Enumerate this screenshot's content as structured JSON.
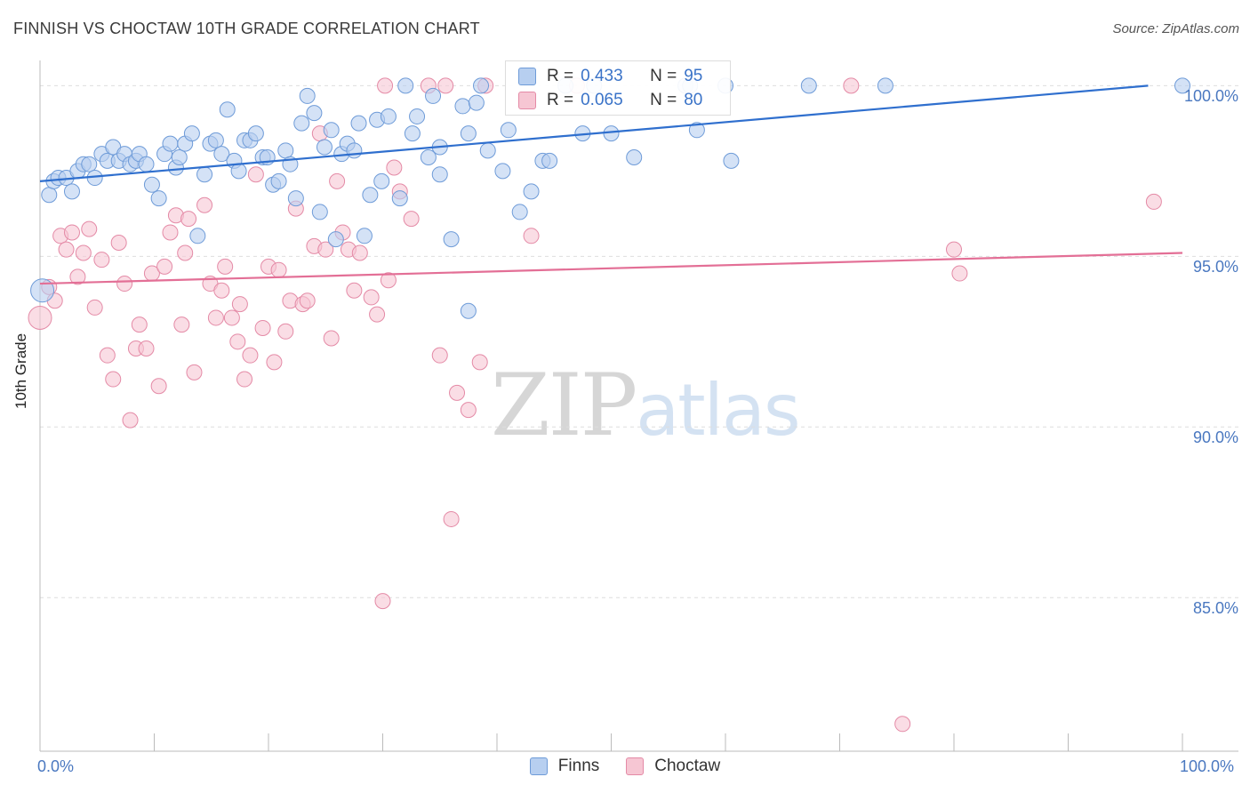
{
  "header": {
    "title": "FINNISH VS CHOCTAW 10TH GRADE CORRELATION CHART",
    "source": "Source: ZipAtlas.com"
  },
  "watermark": {
    "zip": "ZIP",
    "atlas": "atlas"
  },
  "legend_top": {
    "rows": [
      {
        "r_label": "R =",
        "r_value": "0.433",
        "n_label": "N =",
        "n_value": "95"
      },
      {
        "r_label": "R =",
        "r_value": "0.065",
        "n_label": "N =",
        "n_value": "80"
      }
    ]
  },
  "legend_bottom": {
    "items": [
      "Finns",
      "Choctaw"
    ]
  },
  "colors": {
    "finns_fill": "#b7cff0",
    "finns_stroke": "#6e9bd8",
    "finns_line": "#2f6fce",
    "choctaw_fill": "#f6c6d3",
    "choctaw_stroke": "#e48aa6",
    "choctaw_line": "#e36f96",
    "grid": "#dedede",
    "axis_text": "#4a78c0"
  },
  "chart_data": {
    "type": "scatter",
    "title": "FINNISH VS CHOCTAW 10TH GRADE CORRELATION CHART",
    "xlabel": "",
    "ylabel": "10th Grade",
    "xlim": [
      0,
      100
    ],
    "ylim": [
      80.5,
      101
    ],
    "x_ticks": [
      "0.0%",
      "100.0%"
    ],
    "y_ticks": [
      "100.0%",
      "95.0%",
      "90.0%",
      "85.0%"
    ],
    "y_tick_values": [
      100,
      95,
      90,
      85
    ],
    "grid": true,
    "legend_position": "top-center",
    "series": [
      {
        "name": "Finns",
        "r": 0.433,
        "n": 95,
        "trend": [
          [
            0,
            97.2
          ],
          [
            97,
            100.0
          ]
        ],
        "points": [
          [
            0.2,
            94.0
          ],
          [
            0.8,
            96.8
          ],
          [
            1.2,
            97.2
          ],
          [
            1.6,
            97.3
          ],
          [
            2.3,
            97.3
          ],
          [
            2.8,
            96.9
          ],
          [
            3.3,
            97.5
          ],
          [
            3.8,
            97.7
          ],
          [
            4.3,
            97.7
          ],
          [
            4.8,
            97.3
          ],
          [
            5.4,
            98.0
          ],
          [
            5.9,
            97.8
          ],
          [
            6.4,
            98.2
          ],
          [
            6.9,
            97.8
          ],
          [
            7.4,
            98.0
          ],
          [
            7.9,
            97.7
          ],
          [
            8.4,
            97.8
          ],
          [
            8.7,
            98.0
          ],
          [
            9.3,
            97.7
          ],
          [
            9.8,
            97.1
          ],
          [
            10.4,
            96.7
          ],
          [
            10.9,
            98.0
          ],
          [
            11.4,
            98.3
          ],
          [
            11.9,
            97.6
          ],
          [
            12.2,
            97.9
          ],
          [
            12.7,
            98.3
          ],
          [
            13.3,
            98.6
          ],
          [
            13.8,
            95.6
          ],
          [
            14.4,
            97.4
          ],
          [
            14.9,
            98.3
          ],
          [
            15.4,
            98.4
          ],
          [
            15.9,
            98.0
          ],
          [
            16.4,
            99.3
          ],
          [
            17.0,
            97.8
          ],
          [
            17.4,
            97.5
          ],
          [
            17.9,
            98.4
          ],
          [
            18.4,
            98.4
          ],
          [
            18.9,
            98.6
          ],
          [
            19.5,
            97.9
          ],
          [
            19.9,
            97.9
          ],
          [
            20.4,
            97.1
          ],
          [
            20.9,
            97.2
          ],
          [
            21.5,
            98.1
          ],
          [
            21.9,
            97.7
          ],
          [
            22.4,
            96.7
          ],
          [
            22.9,
            98.9
          ],
          [
            23.4,
            99.7
          ],
          [
            24.0,
            99.2
          ],
          [
            24.5,
            96.3
          ],
          [
            24.9,
            98.2
          ],
          [
            25.5,
            98.7
          ],
          [
            25.9,
            95.5
          ],
          [
            26.4,
            98.0
          ],
          [
            26.9,
            98.3
          ],
          [
            27.5,
            98.1
          ],
          [
            27.9,
            98.9
          ],
          [
            28.4,
            95.6
          ],
          [
            28.9,
            96.8
          ],
          [
            29.5,
            99.0
          ],
          [
            29.9,
            97.2
          ],
          [
            30.5,
            99.1
          ],
          [
            31.5,
            96.7
          ],
          [
            32.0,
            100.0
          ],
          [
            32.6,
            98.6
          ],
          [
            33.0,
            99.1
          ],
          [
            34.0,
            97.9
          ],
          [
            34.4,
            99.7
          ],
          [
            35.0,
            98.2
          ],
          [
            35.0,
            97.4
          ],
          [
            36.0,
            95.5
          ],
          [
            37.0,
            99.4
          ],
          [
            37.5,
            98.6
          ],
          [
            38.2,
            99.5
          ],
          [
            38.6,
            100.0
          ],
          [
            39.2,
            98.1
          ],
          [
            40.5,
            97.5
          ],
          [
            41.0,
            98.7
          ],
          [
            42.0,
            96.3
          ],
          [
            43.0,
            96.9
          ],
          [
            44.0,
            97.8
          ],
          [
            44.6,
            97.8
          ],
          [
            46.0,
            100.0
          ],
          [
            47.5,
            98.6
          ],
          [
            48.5,
            100.0
          ],
          [
            50.0,
            98.6
          ],
          [
            52.0,
            97.9
          ],
          [
            56.5,
            100.0
          ],
          [
            56.9,
            100.0
          ],
          [
            57.5,
            98.7
          ],
          [
            60.0,
            100.0
          ],
          [
            60.5,
            97.8
          ],
          [
            67.3,
            100.0
          ],
          [
            74.0,
            100.0
          ],
          [
            100.0,
            100.0
          ],
          [
            37.5,
            93.4
          ]
        ]
      },
      {
        "name": "Choctaw",
        "r": 0.065,
        "n": 80,
        "trend": [
          [
            0,
            94.2
          ],
          [
            100,
            95.1
          ]
        ],
        "points": [
          [
            0.0,
            93.2
          ],
          [
            0.8,
            94.1
          ],
          [
            1.3,
            93.7
          ],
          [
            1.8,
            95.6
          ],
          [
            2.3,
            95.2
          ],
          [
            2.8,
            95.7
          ],
          [
            3.3,
            94.4
          ],
          [
            3.8,
            95.1
          ],
          [
            4.3,
            95.8
          ],
          [
            4.8,
            93.5
          ],
          [
            5.4,
            94.9
          ],
          [
            5.9,
            92.1
          ],
          [
            6.4,
            91.4
          ],
          [
            6.9,
            95.4
          ],
          [
            7.4,
            94.2
          ],
          [
            7.9,
            90.2
          ],
          [
            8.4,
            92.3
          ],
          [
            8.7,
            93.0
          ],
          [
            9.3,
            92.3
          ],
          [
            9.8,
            94.5
          ],
          [
            10.4,
            91.2
          ],
          [
            10.9,
            94.7
          ],
          [
            11.4,
            95.7
          ],
          [
            11.9,
            96.2
          ],
          [
            12.4,
            93.0
          ],
          [
            12.7,
            95.1
          ],
          [
            13.0,
            96.1
          ],
          [
            13.5,
            91.6
          ],
          [
            14.4,
            96.5
          ],
          [
            14.9,
            94.2
          ],
          [
            15.4,
            93.2
          ],
          [
            15.9,
            94.0
          ],
          [
            16.2,
            94.7
          ],
          [
            16.8,
            93.2
          ],
          [
            17.3,
            92.5
          ],
          [
            17.5,
            93.6
          ],
          [
            17.9,
            91.4
          ],
          [
            18.4,
            92.1
          ],
          [
            18.9,
            97.4
          ],
          [
            19.5,
            92.9
          ],
          [
            20.0,
            94.7
          ],
          [
            20.5,
            91.9
          ],
          [
            20.9,
            94.6
          ],
          [
            21.5,
            92.8
          ],
          [
            21.9,
            93.7
          ],
          [
            22.4,
            96.4
          ],
          [
            23.0,
            93.6
          ],
          [
            23.4,
            93.7
          ],
          [
            24.0,
            95.3
          ],
          [
            24.5,
            98.6
          ],
          [
            25.0,
            95.2
          ],
          [
            25.5,
            92.6
          ],
          [
            26.0,
            97.2
          ],
          [
            26.5,
            95.7
          ],
          [
            27.0,
            95.2
          ],
          [
            27.5,
            94.0
          ],
          [
            28.0,
            95.1
          ],
          [
            29.0,
            93.8
          ],
          [
            29.5,
            93.3
          ],
          [
            30.2,
            100.0
          ],
          [
            30.5,
            94.3
          ],
          [
            31.0,
            97.6
          ],
          [
            31.5,
            96.9
          ],
          [
            32.5,
            96.1
          ],
          [
            34.0,
            100.0
          ],
          [
            35.0,
            92.1
          ],
          [
            35.5,
            100.0
          ],
          [
            36.0,
            87.3
          ],
          [
            36.5,
            91.0
          ],
          [
            37.5,
            90.5
          ],
          [
            38.5,
            91.9
          ],
          [
            39.0,
            100.0
          ],
          [
            43.0,
            95.6
          ],
          [
            47.0,
            100.0
          ],
          [
            71.0,
            100.0
          ],
          [
            80.0,
            95.2
          ],
          [
            80.5,
            94.5
          ],
          [
            97.5,
            96.6
          ],
          [
            75.5,
            81.3
          ],
          [
            30.0,
            84.9
          ]
        ]
      }
    ]
  }
}
